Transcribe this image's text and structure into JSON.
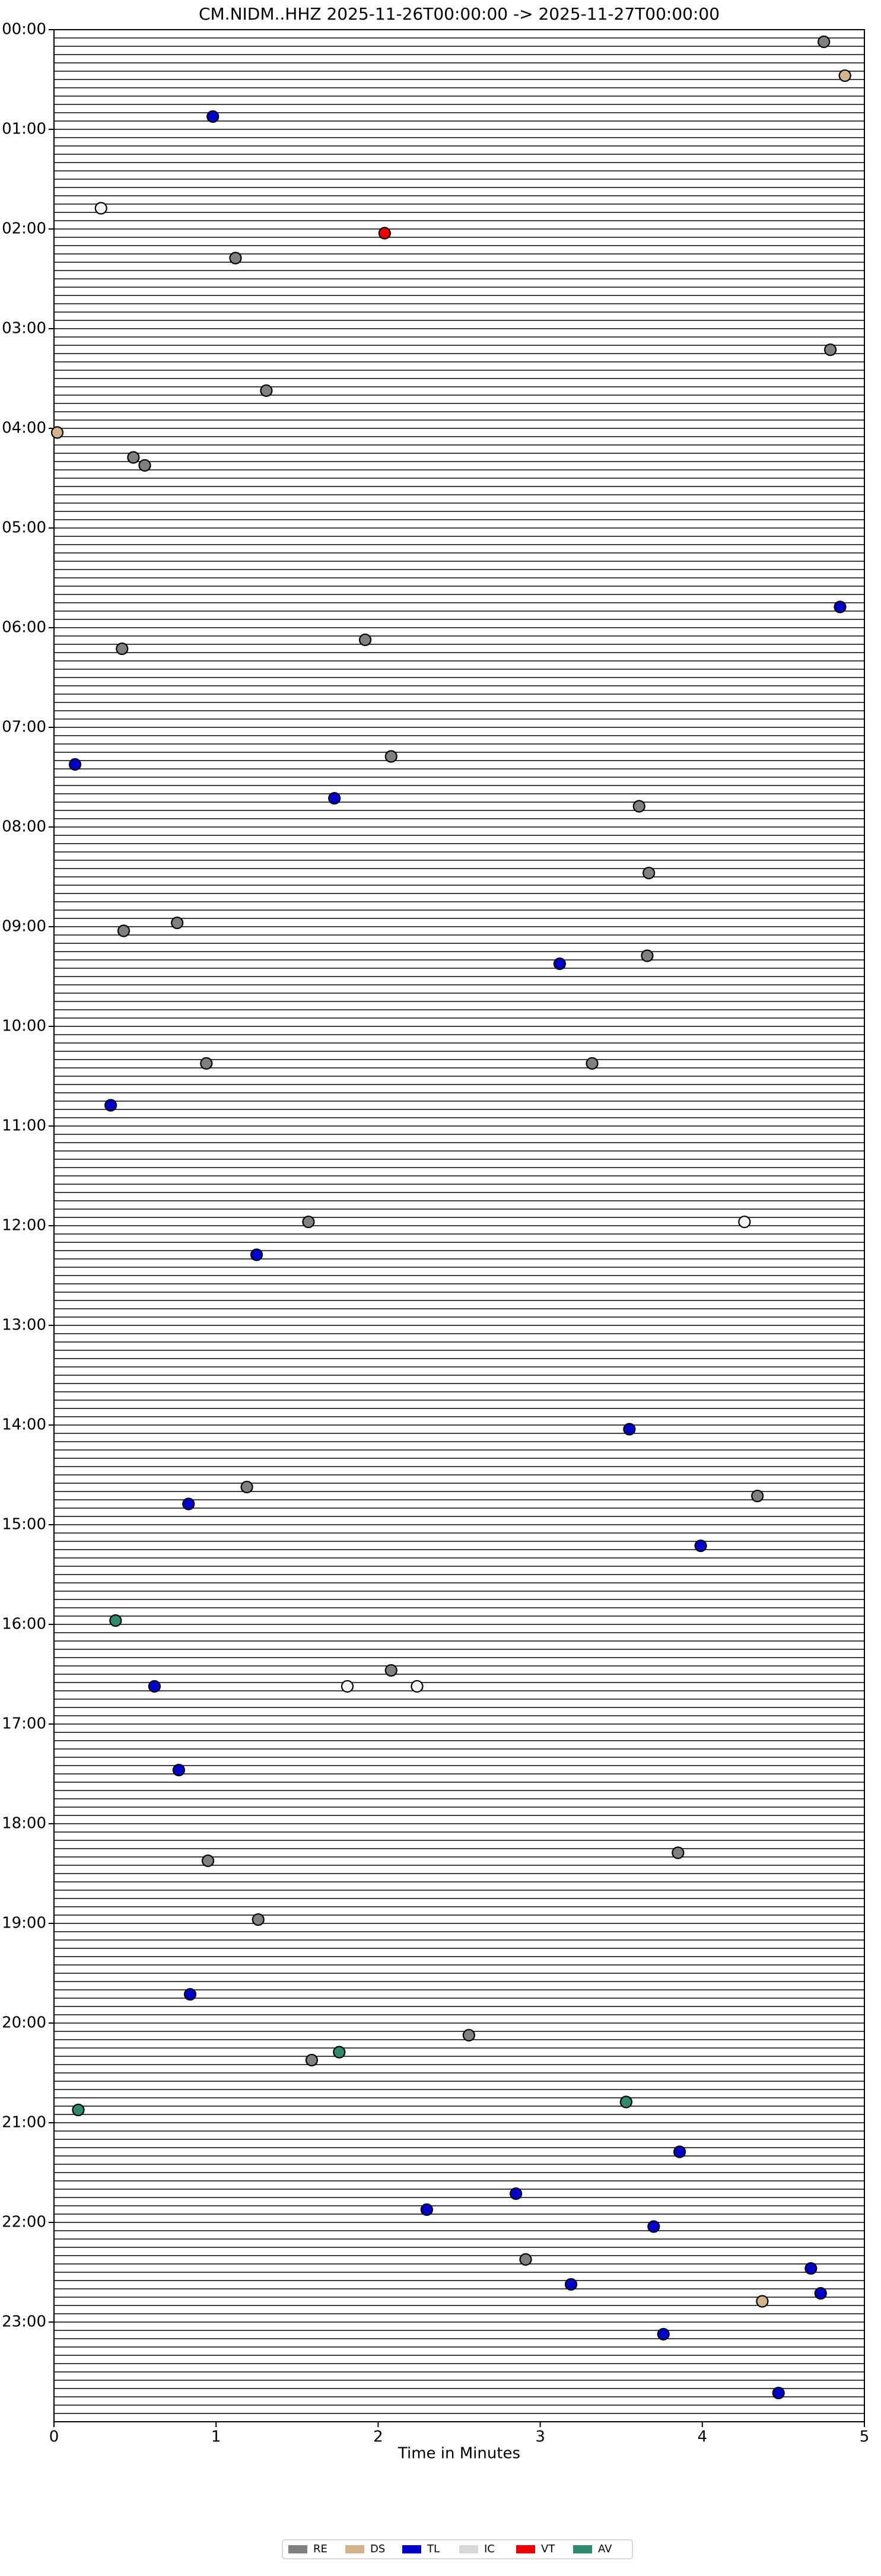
{
  "chart_data": {
    "type": "scatter",
    "title": "CM.NIDM..HHZ  2025-11-26T00:00:00 -> 2025-11-27T00:00:00",
    "x_label": "Time in Minutes",
    "xlim": [
      0,
      5
    ],
    "xticks": [
      0,
      1,
      2,
      3,
      4,
      5
    ],
    "ylim": [
      24,
      0
    ],
    "yticks": [
      {
        "value": 0,
        "label": "00:00"
      },
      {
        "value": 1,
        "label": "01:00"
      },
      {
        "value": 2,
        "label": "02:00"
      },
      {
        "value": 3,
        "label": "03:00"
      },
      {
        "value": 4,
        "label": "04:00"
      },
      {
        "value": 5,
        "label": "05:00"
      },
      {
        "value": 6,
        "label": "06:00"
      },
      {
        "value": 7,
        "label": "07:00"
      },
      {
        "value": 8,
        "label": "08:00"
      },
      {
        "value": 9,
        "label": "09:00"
      },
      {
        "value": 10,
        "label": "10:00"
      },
      {
        "value": 11,
        "label": "11:00"
      },
      {
        "value": 12,
        "label": "12:00"
      },
      {
        "value": 13,
        "label": "13:00"
      },
      {
        "value": 14,
        "label": "14:00"
      },
      {
        "value": 15,
        "label": "15:00"
      },
      {
        "value": 16,
        "label": "16:00"
      },
      {
        "value": 17,
        "label": "17:00"
      },
      {
        "value": 18,
        "label": "18:00"
      },
      {
        "value": 19,
        "label": "19:00"
      },
      {
        "value": 20,
        "label": "20:00"
      },
      {
        "value": 21,
        "label": "21:00"
      },
      {
        "value": 22,
        "label": "22:00"
      },
      {
        "value": 23,
        "label": "23:00"
      }
    ],
    "series": [
      {
        "name": "RE",
        "color": "#808080",
        "x": [
          4.75,
          1.12,
          4.79,
          1.31,
          0.49,
          0.56,
          1.92,
          0.42,
          2.08,
          3.61,
          3.67,
          0.76,
          0.43,
          3.66,
          0.94,
          3.32,
          1.57,
          1.19,
          4.34,
          2.08,
          3.85,
          0.95,
          1.26,
          2.56,
          1.59,
          2.91
        ],
        "y": [
          0.08,
          2.25,
          3.17,
          3.58,
          4.25,
          4.33,
          6.08,
          6.17,
          7.25,
          7.75,
          8.42,
          8.92,
          9.0,
          9.25,
          10.33,
          10.33,
          11.92,
          14.58,
          14.67,
          16.42,
          18.25,
          18.33,
          18.92,
          20.08,
          20.33,
          22.33
        ]
      },
      {
        "name": "DS",
        "color": "#d2b48c",
        "x": [
          4.88,
          0.02,
          4.37
        ],
        "y": [
          0.42,
          4.0,
          22.75
        ]
      },
      {
        "name": "TL",
        "color": "#0000cc",
        "x": [
          0.98,
          4.85,
          0.13,
          1.73,
          3.12,
          0.35,
          1.25,
          3.55,
          0.83,
          3.99,
          0.62,
          0.77,
          0.84,
          3.86,
          2.85,
          2.3,
          3.7,
          4.67,
          3.19,
          4.73,
          3.76,
          4.47
        ],
        "y": [
          0.83,
          5.75,
          7.33,
          7.67,
          9.33,
          10.75,
          12.25,
          14.0,
          14.75,
          15.17,
          16.58,
          17.42,
          19.67,
          21.25,
          21.67,
          21.83,
          22.0,
          22.42,
          22.58,
          22.67,
          23.08,
          23.67
        ]
      },
      {
        "name": "IC",
        "color": "#f4f4f4",
        "x": [
          0.29,
          4.26,
          1.81,
          2.24
        ],
        "y": [
          1.75,
          11.92,
          16.58,
          16.58
        ]
      },
      {
        "name": "VT",
        "color": "#ee0000",
        "x": [
          2.04
        ],
        "y": [
          2.0
        ]
      },
      {
        "name": "AV",
        "color": "#2e8b6e",
        "x": [
          0.38,
          1.76,
          3.53,
          0.15
        ],
        "y": [
          15.92,
          20.25,
          20.75,
          20.83
        ]
      }
    ]
  }
}
